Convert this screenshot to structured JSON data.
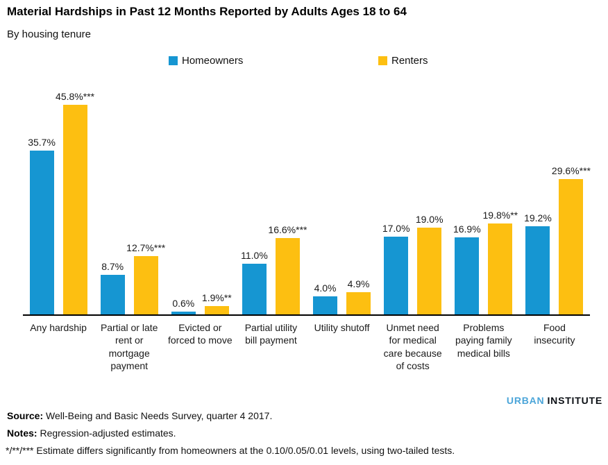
{
  "header": {
    "title": "Material Hardships in Past 12 Months Reported by Adults Ages 18 to 64",
    "subtitle": "By housing tenure"
  },
  "legend": [
    {
      "label": "Homeowners",
      "color": "#1696d2"
    },
    {
      "label": "Renters",
      "color": "#fdbf11"
    }
  ],
  "chart_data": {
    "type": "bar",
    "title": "Material Hardships in Past 12 Months Reported by Adults Ages 18 to 64",
    "subtitle": "By housing tenure",
    "xlabel": "",
    "ylabel": "",
    "ylim": [
      0,
      50
    ],
    "grid": false,
    "legend_position": "top",
    "categories": [
      "Any hardship",
      "Partial or late rent or mortgage payment",
      "Evicted or forced to move",
      "Partial utility bill payment",
      "Utility shutoff",
      "Unmet need for medical care because of costs",
      "Problems paying family medical bills",
      "Food insecurity"
    ],
    "series": [
      {
        "name": "Homeowners",
        "color": "#1696d2",
        "values": [
          35.7,
          8.7,
          0.6,
          11.0,
          4.0,
          17.0,
          16.9,
          19.2
        ],
        "labels": [
          "35.7%",
          "8.7%",
          "0.6%",
          "11.0%",
          "4.0%",
          "17.0%",
          "16.9%",
          "19.2%"
        ]
      },
      {
        "name": "Renters",
        "color": "#fdbf11",
        "values": [
          45.8,
          12.7,
          1.9,
          16.6,
          4.9,
          19.0,
          19.8,
          29.6
        ],
        "labels": [
          "45.8%***",
          "12.7%***",
          "1.9%**",
          "16.6%***",
          "4.9%",
          "19.0%",
          "19.8%**",
          "29.6%***"
        ]
      }
    ]
  },
  "footer": {
    "logo_part1": "URBAN",
    "logo_part2": "INSTITUTE",
    "source_label": "Source:",
    "source_text": " Well-Being and Basic Needs Survey, quarter 4 2017.",
    "notes_label": "Notes:",
    "notes_text": " Regression-adjusted estimates.",
    "significance_text": "*/**/*** Estimate differs significantly from homeowners at the 0.10/0.05/0.01 levels, using two-tailed tests."
  }
}
